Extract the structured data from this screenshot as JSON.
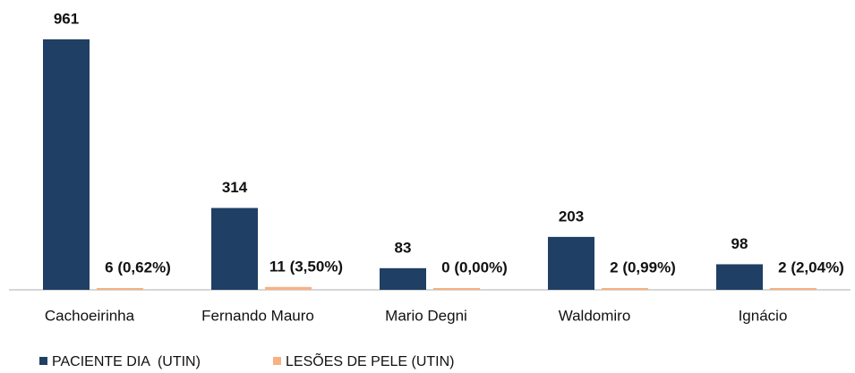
{
  "chart_data": {
    "type": "bar",
    "categories": [
      "Cachoeirinha",
      "Fernando Mauro",
      "Mario Degni",
      "Waldomiro",
      "Ignácio"
    ],
    "series": [
      {
        "name": "PACIENTE DIA  (UTIN)",
        "color": "#203f64",
        "values": [
          961,
          314,
          83,
          203,
          98
        ]
      },
      {
        "name": "LESÕES DE PELE (UTIN)",
        "color": "#f5b283",
        "values": [
          6,
          11,
          0,
          2,
          2
        ],
        "value_labels": [
          "6 (0,62%)",
          "11 (3,50%)",
          "0 (0,00%)",
          "2 (0,99%)",
          "2 (2,04%)"
        ]
      }
    ],
    "legend": "bottom-left"
  }
}
